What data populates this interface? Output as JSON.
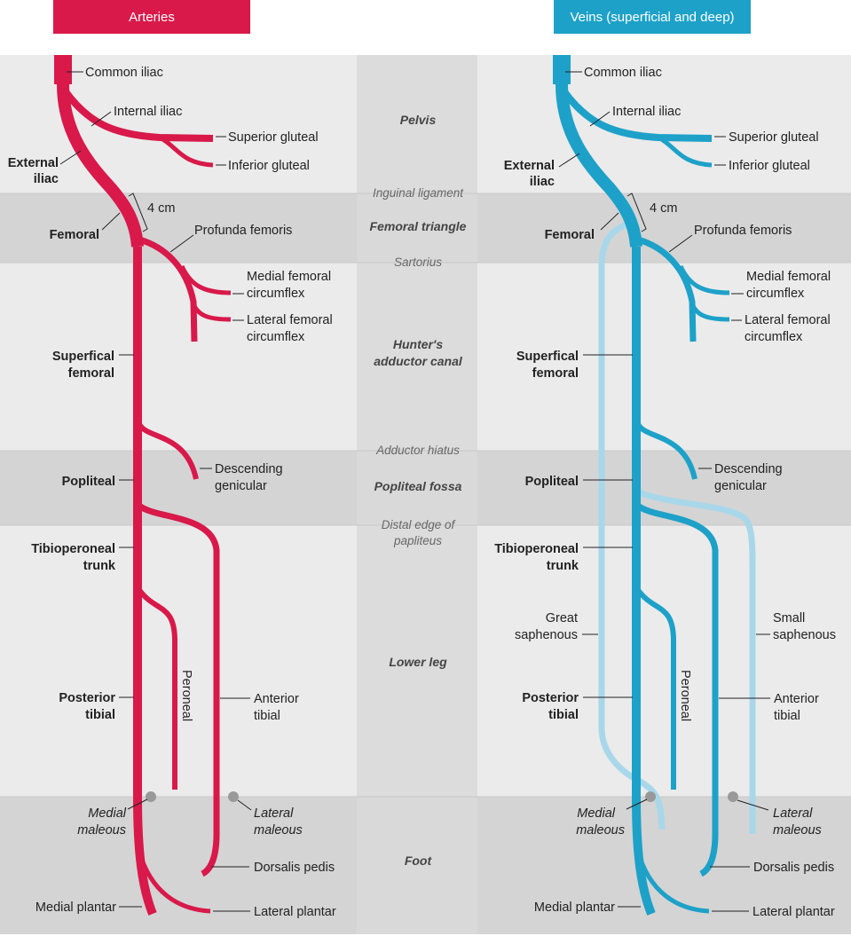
{
  "headers": {
    "arteries": "Arteries",
    "veins": "Veins (superficial and deep)"
  },
  "colors": {
    "artery": "#d8194a",
    "vein": "#1da1c8",
    "superficial_vein": "#a9d7ea",
    "band_light": "#ebebeb",
    "band_dark": "#d4d4d4",
    "center_column": "#d9d9d9"
  },
  "regions": {
    "pelvis": "Pelvis",
    "femoral_triangle": "Femoral triangle",
    "hunters_1": "Hunter's",
    "hunters_2": "adductor canal",
    "popliteal_fossa": "Popliteal fossa",
    "lower_leg": "Lower leg",
    "foot": "Foot"
  },
  "landmarks": {
    "inguinal_ligament": "Inguinal ligament",
    "sartorius": "Sartorius",
    "adductor_hiatus": "Adductor hiatus",
    "distal_edge_1": "Distal edge of",
    "distal_edge_2": "papliteus"
  },
  "measure": "4 cm",
  "labels": {
    "common_iliac": "Common iliac",
    "internal_iliac": "Internal iliac",
    "superior_gluteal": "Superior gluteal",
    "inferior_gluteal": "Inferior gluteal",
    "external_iliac_1": "External",
    "external_iliac_2": "iliac",
    "femoral": "Femoral",
    "profunda_femoris": "Profunda femoris",
    "medial_femoral_1": "Medial femoral",
    "medial_femoral_2": "circumflex",
    "lateral_femoral_1": "Lateral femoral",
    "lateral_femoral_2": "circumflex",
    "superficial_femoral_1": "Superfical",
    "superficial_femoral_2": "femoral",
    "descending_genicular_1": "Descending",
    "descending_genicular_2": "genicular",
    "popliteal": "Popliteal",
    "tibioperoneal_1": "Tibioperoneal",
    "tibioperoneal_2": "trunk",
    "peroneal": "Peroneal",
    "posterior_tibial_1": "Posterior",
    "posterior_tibial_2": "tibial",
    "anterior_tibial_1": "Anterior",
    "anterior_tibial_2": "tibial",
    "medial_maleous_1": "Medial",
    "medial_maleous_2": "maleous",
    "lateral_maleous_1": "Lateral",
    "lateral_maleous_2": "maleous",
    "dorsalis_pedis": "Dorsalis pedis",
    "medial_plantar": "Medial plantar",
    "lateral_plantar": "Lateral plantar",
    "great_saphenous_1": "Great",
    "great_saphenous_2": "saphenous",
    "small_saphenous_1": "Small",
    "small_saphenous_2": "saphenous"
  }
}
